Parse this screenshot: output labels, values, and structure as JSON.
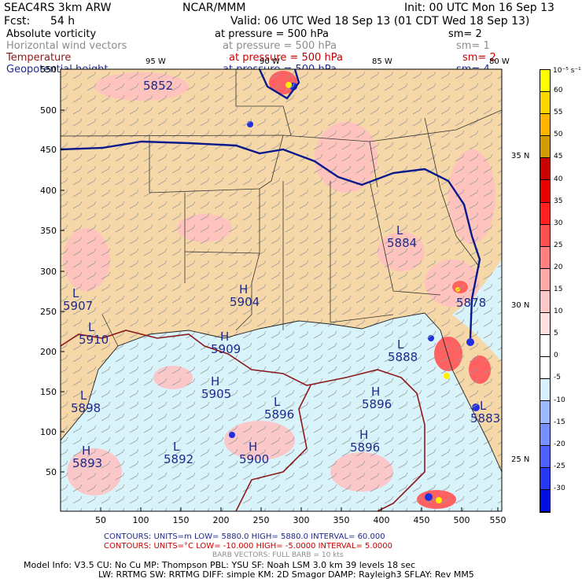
{
  "header": {
    "model": "SEAC4RS  3km ARW",
    "org": "NCAR/MMM",
    "init": "Init: 00 UTC Mon 16 Sep 13",
    "fcst_label": "Fcst:",
    "fcst_value": "54 h",
    "valid": "Valid: 06 UTC Wed 18 Sep 13 (01 CDT Wed 18 Sep 13)"
  },
  "fields": [
    {
      "name": "Absolute vorticity",
      "level": "at pressure =  500 hPa",
      "sm": "sm= 2",
      "color": "#000000"
    },
    {
      "name": "Horizontal wind vectors",
      "level": "at pressure =  500 hPa",
      "sm": "sm= 1",
      "color": "#8c8c8c"
    },
    {
      "name": "Temperature",
      "level": "at pressure =  500 hPa",
      "sm": "sm= 2",
      "color": "#8b1a1a"
    },
    {
      "name": "Geopotential height",
      "level": "at pressure =  500 hPa",
      "sm": "sm= 4",
      "color": "#1f2a8c"
    }
  ],
  "map": {
    "lon_labels": [
      "95 W",
      "90 W",
      "85 W",
      "80 W"
    ],
    "lat_labels": [
      "35 N",
      "30 N",
      "25 N"
    ],
    "y_ticks": [
      "550",
      "500",
      "450",
      "400",
      "350",
      "300",
      "250",
      "200",
      "150",
      "100",
      "50"
    ],
    "x_ticks": [
      "50",
      "100",
      "150",
      "200",
      "250",
      "300",
      "350",
      "400",
      "450",
      "500",
      "550"
    ],
    "height_labels": [
      {
        "kind": "",
        "value": "5852"
      },
      {
        "kind": "L",
        "value": "5907"
      },
      {
        "kind": "H",
        "value": "5904"
      },
      {
        "kind": "L",
        "value": "5884"
      },
      {
        "kind": "L",
        "value": "5910"
      },
      {
        "kind": "H",
        "value": "5909"
      },
      {
        "kind": "L",
        "value": "5888"
      },
      {
        "kind": "",
        "value": "5878"
      },
      {
        "kind": "L",
        "value": "5898"
      },
      {
        "kind": "H",
        "value": "5905"
      },
      {
        "kind": "L",
        "value": "5896"
      },
      {
        "kind": "H",
        "value": "5896"
      },
      {
        "kind": "H",
        "value": "5896"
      },
      {
        "kind": "H",
        "value": "5893"
      },
      {
        "kind": "L",
        "value": "5892"
      },
      {
        "kind": "H",
        "value": "5900"
      },
      {
        "kind": "L",
        "value": "5883"
      }
    ]
  },
  "colorbar": {
    "units": "10⁻⁵ s⁻¹",
    "labels": [
      "60",
      "55",
      "50",
      "45",
      "40",
      "35",
      "30",
      "25",
      "20",
      "15",
      "10",
      "5",
      "0",
      "-5",
      "-10",
      "-15",
      "-20",
      "-25",
      "-30"
    ],
    "colors": [
      "#ffff00",
      "#ffd700",
      "#ffb400",
      "#d49b00",
      "#c80000",
      "#e60000",
      "#ff2020",
      "#ff5050",
      "#ff8080",
      "#ffa8a8",
      "#ffc8c8",
      "#ffe0e0",
      "#ffffff",
      "#ffffff",
      "#d8f0ff",
      "#a0b8ff",
      "#7890ff",
      "#5060ff",
      "#2838f0",
      "#0010e0"
    ]
  },
  "footer": {
    "contours1": "CONTOURS:  UNITS=m   LOW=  5880.0         HIGH=  5880.0        INTERVAL=   60.000",
    "contours2": "CONTOURS:  UNITS=°C   LOW= -10.000        HIGH= -5.0000        INTERVAL=   5.0000",
    "barbs": "BARB VECTORS:  FULL BARB = 10 kts",
    "model1": "Model Info: V3.5        CU: No Cu      MP: Thompson      PBL: YSU        SF: Noah LSM      3.0 km   39 levels   18 sec",
    "model2": "LW: RRTMG    SW: RRTMG   DIFF: simple KM: 2D Smagor DAMP: Rayleigh3  SFLAY: Rev MM5"
  }
}
